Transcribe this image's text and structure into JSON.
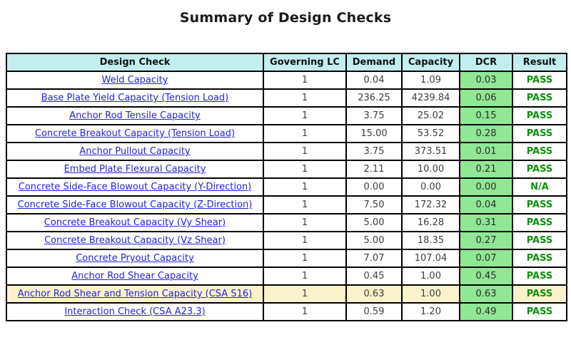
{
  "page_title": "Summary of Design Checks",
  "table": {
    "columns": [
      "Design Check",
      "Governing LC",
      "Demand",
      "Capacity",
      "DCR",
      "Result"
    ],
    "rows": [
      {
        "check": "Weld Capacity",
        "governing_lc": "1",
        "demand": "0.04",
        "capacity": "1.09",
        "dcr": "0.03",
        "result": "PASS",
        "highlighted": false
      },
      {
        "check": "Base Plate Yield Capacity (Tension Load)",
        "governing_lc": "1",
        "demand": "236.25",
        "capacity": "4239.84",
        "dcr": "0.06",
        "result": "PASS",
        "highlighted": false
      },
      {
        "check": "Anchor Rod Tensile Capacity",
        "governing_lc": "1",
        "demand": "3.75",
        "capacity": "25.02",
        "dcr": "0.15",
        "result": "PASS",
        "highlighted": false
      },
      {
        "check": "Concrete Breakout Capacity (Tension Load)",
        "governing_lc": "1",
        "demand": "15.00",
        "capacity": "53.52",
        "dcr": "0.28",
        "result": "PASS",
        "highlighted": false
      },
      {
        "check": "Anchor Pullout Capacity",
        "governing_lc": "1",
        "demand": "3.75",
        "capacity": "373.51",
        "dcr": "0.01",
        "result": "PASS",
        "highlighted": false
      },
      {
        "check": "Embed Plate Flexural Capacity",
        "governing_lc": "1",
        "demand": "2.11",
        "capacity": "10.00",
        "dcr": "0.21",
        "result": "PASS",
        "highlighted": false
      },
      {
        "check": "Concrete Side-Face Blowout Capacity (Y-Direction)",
        "governing_lc": "1",
        "demand": "0.00",
        "capacity": "0.00",
        "dcr": "0.00",
        "result": "N/A",
        "highlighted": false
      },
      {
        "check": "Concrete Side-Face Blowout Capacity (Z-Direction)",
        "governing_lc": "1",
        "demand": "7.50",
        "capacity": "172.32",
        "dcr": "0.04",
        "result": "PASS",
        "highlighted": false
      },
      {
        "check": "Concrete Breakout Capacity (Vy Shear)",
        "governing_lc": "1",
        "demand": "5.00",
        "capacity": "16.28",
        "dcr": "0.31",
        "result": "PASS",
        "highlighted": false
      },
      {
        "check": "Concrete Breakout Capacity (Vz Shear)",
        "governing_lc": "1",
        "demand": "5.00",
        "capacity": "18.35",
        "dcr": "0.27",
        "result": "PASS",
        "highlighted": false
      },
      {
        "check": "Concrete Pryout Capacity",
        "governing_lc": "1",
        "demand": "7.07",
        "capacity": "107.04",
        "dcr": "0.07",
        "result": "PASS",
        "highlighted": false
      },
      {
        "check": "Anchor Rod Shear Capacity",
        "governing_lc": "1",
        "demand": "0.45",
        "capacity": "1.00",
        "dcr": "0.45",
        "result": "PASS",
        "highlighted": false
      },
      {
        "check": "Anchor Rod Shear and Tension Capacity (CSA S16)",
        "governing_lc": "1",
        "demand": "0.63",
        "capacity": "1.00",
        "dcr": "0.63",
        "result": "PASS",
        "highlighted": true
      },
      {
        "check": "Interaction Check (CSA A23.3)",
        "governing_lc": "1",
        "demand": "0.59",
        "capacity": "1.20",
        "dcr": "0.49",
        "result": "PASS",
        "highlighted": false
      }
    ]
  },
  "theme": {
    "header-bg": "#c3eef0",
    "dcr-bg": "#90e794",
    "highlight-bg": "#fbf2cc",
    "link-color": "#2323e0",
    "result-color": "#0b9209",
    "number-color": "#3d3d3d",
    "border-color": "#000000"
  }
}
